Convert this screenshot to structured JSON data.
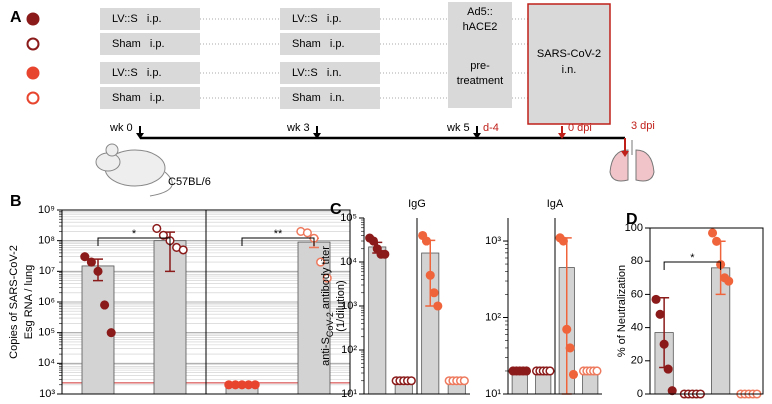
{
  "diagram": {
    "panel": "A",
    "rows": [
      {
        "color": "#8b1a1a",
        "filled": true,
        "prime": "LV::S   i.p.",
        "boost": "LV::S   i.p."
      },
      {
        "color": "#8b1a1a",
        "filled": false,
        "prime": "Sham   i.p.",
        "boost": "Sham   i.p."
      },
      {
        "color": "#e8452f",
        "filled": true,
        "prime": "LV::S   i.p.",
        "boost": "LV::S   i.n."
      },
      {
        "color": "#e8452f",
        "filled": false,
        "prime": "Sham   i.p.",
        "boost": "Sham   i.n."
      }
    ],
    "pretreatment": [
      "Ad5::",
      "hACE2",
      "pre-",
      "treatment"
    ],
    "challenge": [
      "SARS-CoV-2",
      "i.n."
    ],
    "timeline": [
      {
        "label": "wk 0",
        "color": "#000000"
      },
      {
        "label": "wk 3",
        "color": "#000000"
      },
      {
        "label": "wk 5",
        "color": "#000000",
        "extra": "d-4"
      },
      {
        "label": "0 dpi",
        "color": "#c0201a"
      },
      {
        "label": "3 dpi",
        "color": "#c0201a"
      }
    ],
    "strain": "C57BL/6"
  },
  "chart_data": [
    {
      "type": "dotbar",
      "panel": "B",
      "y_label": [
        "Copies of SARS-CoV-2",
        "Esg RNA / lung"
      ],
      "log": true,
      "grid": "minor",
      "frame": true,
      "divider": true,
      "ylim": [
        1000,
        1000000000
      ],
      "yticks": [
        {
          "value": 1000,
          "label": "10³"
        },
        {
          "value": 10000,
          "label": "10⁴"
        },
        {
          "value": 100000,
          "label": "10⁵"
        },
        {
          "value": 1000000,
          "label": "10⁶"
        },
        {
          "value": 10000000,
          "label": "10⁷"
        },
        {
          "value": 100000000,
          "label": "10⁸"
        },
        {
          "value": 1000000000,
          "label": "10⁹"
        }
      ],
      "reference_line": {
        "value": 2300,
        "color": "#d03030"
      },
      "groups": [
        {
          "color": "#8b1a1a",
          "filled": true,
          "bar": 15000000,
          "error": 10000000,
          "points": [
            30000000,
            20000000,
            10000000,
            800000,
            100000
          ]
        },
        {
          "color": "#8b1a1a",
          "filled": false,
          "bar": 100000000,
          "error": 90000000,
          "points": [
            250000000,
            150000000,
            100000000,
            60000000,
            50000000
          ]
        },
        {
          "color": "#e8452f",
          "filled": true,
          "bar": 2000,
          "error": 0,
          "points": [
            2000,
            2000,
            2000,
            2000,
            2000
          ]
        },
        {
          "color": "#ee7a5e",
          "filled": false,
          "bar": 90000000,
          "error": 30000000,
          "points": [
            200000000,
            180000000,
            120000000,
            20000000,
            6000000
          ]
        }
      ],
      "brackets": [
        {
          "label": "*",
          "groups": [
            0,
            1
          ]
        },
        {
          "label": "**",
          "groups": [
            2,
            3
          ]
        }
      ]
    },
    {
      "type": "dotbar",
      "panel": "C",
      "title": "IgG",
      "y_label": [
        "anti-S",
        "CoV-2",
        " antibody titer",
        "(1/dilution)"
      ],
      "log": true,
      "divider": true,
      "ylim": [
        10,
        100000
      ],
      "yticks": [
        {
          "value": 10,
          "label": "10¹"
        },
        {
          "value": 100,
          "label": "10²"
        },
        {
          "value": 1000,
          "label": "10³"
        },
        {
          "value": 10000,
          "label": "10⁴"
        },
        {
          "value": 100000,
          "label": "10⁵"
        }
      ],
      "groups": [
        {
          "color": "#8b1a1a",
          "filled": true,
          "bar": 22000,
          "error": 6000,
          "points": [
            35000,
            30000,
            20000,
            15000,
            15000
          ]
        },
        {
          "color": "#8b1a1a",
          "filled": false,
          "bar": 20,
          "error": 0,
          "points": [
            20,
            20,
            20,
            20,
            20
          ]
        },
        {
          "color": "#f0643c",
          "filled": true,
          "bar": 16000,
          "error": 15000,
          "points": [
            40000,
            30000,
            5000,
            2000,
            1000
          ]
        },
        {
          "color": "#ee7a5e",
          "filled": false,
          "bar": 20,
          "error": 0,
          "points": [
            20,
            20,
            20,
            20,
            20
          ]
        }
      ]
    },
    {
      "type": "dotbar",
      "title": "IgA",
      "log": true,
      "divider": true,
      "ylim": [
        10,
        2000
      ],
      "yticks": [
        {
          "value": 10,
          "label": "10¹"
        },
        {
          "value": 100,
          "label": "10²"
        },
        {
          "value": 1000,
          "label": "10³"
        }
      ],
      "groups": [
        {
          "color": "#8b1a1a",
          "filled": true,
          "bar": 20,
          "error": 0,
          "points": [
            20,
            20,
            20,
            20,
            20
          ]
        },
        {
          "color": "#8b1a1a",
          "filled": false,
          "bar": 20,
          "error": 0,
          "points": [
            20,
            20,
            20,
            20,
            20
          ]
        },
        {
          "color": "#f0643c",
          "filled": true,
          "bar": 450,
          "error": 650,
          "points": [
            1100,
            1000,
            70,
            40,
            18
          ]
        },
        {
          "color": "#ee7a5e",
          "filled": false,
          "bar": 20,
          "error": 0,
          "points": [
            20,
            20,
            20,
            20,
            20
          ]
        }
      ]
    },
    {
      "type": "dotbar",
      "panel": "D",
      "y_label": [
        "% of Neutralization"
      ],
      "log": false,
      "frame": true,
      "ylim": [
        0,
        100
      ],
      "yticks": [
        0,
        20,
        40,
        60,
        80,
        100
      ],
      "groups": [
        {
          "color": "#8b1a1a",
          "filled": true,
          "bar": 37,
          "error": 21,
          "points": [
            57,
            48,
            30,
            15,
            2
          ]
        },
        {
          "color": "#8b1a1a",
          "filled": false,
          "bar": 0,
          "error": 0,
          "points": [
            0,
            0,
            0,
            0,
            0
          ]
        },
        {
          "color": "#f0643c",
          "filled": true,
          "bar": 76,
          "error": 16,
          "points": [
            97,
            92,
            78,
            70,
            68
          ]
        },
        {
          "color": "#ee7a5e",
          "filled": false,
          "bar": 0,
          "error": 0,
          "points": [
            0,
            0,
            0,
            0,
            0
          ]
        }
      ],
      "brackets": [
        {
          "label": "*",
          "groups": [
            0,
            2
          ]
        }
      ]
    }
  ]
}
